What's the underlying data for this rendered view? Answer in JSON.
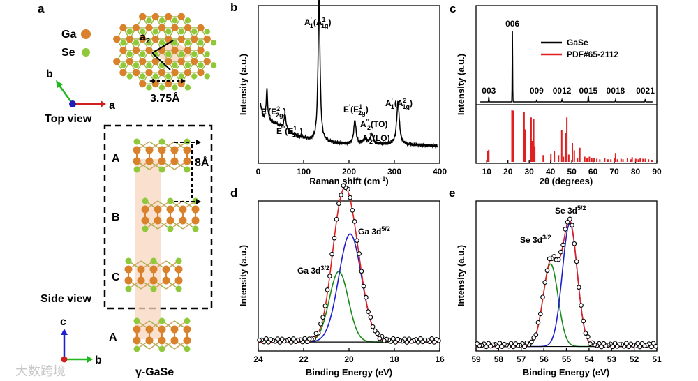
{
  "panels": {
    "a": {
      "letter": "a",
      "legend": [
        {
          "label": "Ga",
          "color": "#d9822b"
        },
        {
          "label": "Se",
          "color": "#8fc93a"
        }
      ],
      "top_view_label": "Top view",
      "side_view_label": "Side view",
      "lattice_a2": "a",
      "lattice_a2_sub": "2",
      "lattice_const": "3.75Å",
      "layer_spacing": "8Å",
      "axes_top": {
        "b": "b",
        "a": "a"
      },
      "axes_side": {
        "c": "c",
        "b": "b"
      },
      "stack_labels": [
        "A",
        "B",
        "C",
        "A"
      ],
      "phase_label": "γ-GaSe",
      "watermark": "大数跨境"
    }
  },
  "chart_data": [
    {
      "panel": "b",
      "type": "line",
      "xlabel": "Raman shift (cm",
      "xlabel_sup": "-1",
      "xlabel_tail": ")",
      "ylabel": "Intensity (a.u.)",
      "xlim": [
        0,
        400
      ],
      "xticks": [
        0,
        100,
        200,
        300,
        400
      ],
      "color": "#000000",
      "peaks": [
        {
          "x": 19,
          "h": 0.2,
          "w": 2
        },
        {
          "x": 59,
          "h": 0.09,
          "w": 2.5
        },
        {
          "x": 134,
          "h": 0.92,
          "w": 2.6
        },
        {
          "x": 213,
          "h": 0.15,
          "w": 3
        },
        {
          "x": 235,
          "h": 0.03,
          "w": 5
        },
        {
          "x": 250,
          "h": 0.06,
          "w": 4
        },
        {
          "x": 308,
          "h": 0.27,
          "w": 3.5
        }
      ],
      "baseline": [
        [
          5,
          0.37
        ],
        [
          12,
          0.28
        ],
        [
          20,
          0.27
        ],
        [
          40,
          0.25
        ],
        [
          80,
          0.18
        ],
        [
          120,
          0.14
        ],
        [
          200,
          0.12
        ],
        [
          300,
          0.12
        ],
        [
          395,
          0.11
        ]
      ],
      "annotations": [
        {
          "text": "A'1(A1g)",
          "main": "A",
          "sup": "'",
          "sub": "1",
          "par_main": "A",
          "par_sup": "1",
          "par_sub": "1g",
          "x": 134
        },
        {
          "text": "E'(E2g)",
          "main": "E",
          "sup": "'",
          "sub": "",
          "par_main": "E",
          "par_sup": "2",
          "par_sub": "2g",
          "x": 19
        },
        {
          "text": "E''(E1g)",
          "main": "E",
          "sup": "''",
          "sub": "",
          "par_main": "E",
          "par_sup": "1",
          "par_sub": "1g",
          "x": 59
        },
        {
          "text": "E'(E2g)",
          "main": "E",
          "sup": "'",
          "sub": "",
          "par_main": "E",
          "par_sup": "1",
          "par_sub": "2g",
          "x": 213
        },
        {
          "text": "A''2(TO)",
          "main": "A",
          "sup": "''",
          "sub": "2",
          "par": "(TO)",
          "x": 240
        },
        {
          "text": "A''2(LO)",
          "main": "A",
          "sup": "''",
          "sub": "2",
          "par": "(LO)",
          "x": 250
        },
        {
          "text": "A'1(A1g)",
          "main": "A",
          "sup": "'",
          "sub": "1",
          "par_main": "A",
          "par_sup": "2",
          "par_sub": "1g",
          "x": 308
        }
      ]
    },
    {
      "panel": "c",
      "type": "bar",
      "xlabel": "2θ (degrees)",
      "ylabel": "Intensity (a.u.)",
      "xlim": [
        5,
        90
      ],
      "xticks": [
        10,
        20,
        30,
        40,
        50,
        60,
        70,
        80,
        90
      ],
      "legend": [
        {
          "name": "GaSe",
          "color": "#000000"
        },
        {
          "name": "PDF#65-2112",
          "color": "#e02020"
        }
      ],
      "series": [
        {
          "name": "GaSe",
          "peaks": [
            {
              "x": 11.0,
              "h": 0.07,
              "label": "003"
            },
            {
              "x": 22.1,
              "h": 1.0,
              "label": "006"
            },
            {
              "x": 33.5,
              "h": 0.02,
              "label": "009"
            },
            {
              "x": 45.4,
              "h": 0.03,
              "label": "0012"
            },
            {
              "x": 57.8,
              "h": 0.09,
              "label": "0015"
            },
            {
              "x": 70.6,
              "h": 0.03,
              "label": "0018"
            },
            {
              "x": 84.6,
              "h": 0.04,
              "label": "0021"
            }
          ]
        },
        {
          "name": "PDF#65-2112",
          "x": [
            10.5,
            11.0,
            21.9,
            22.4,
            27.6,
            28.0,
            30.9,
            31.3,
            32.1,
            32.6,
            36.6,
            40.2,
            41.8,
            43.8,
            45.3,
            46.1,
            47.1,
            47.7,
            48.6,
            50.3,
            51.2,
            52.7,
            53.8,
            56.1,
            57.2,
            58.3,
            59.4,
            60.5,
            61.8,
            63.2,
            65.5,
            67.0,
            68.4,
            70.1,
            70.6,
            71.5,
            73.2,
            74.1,
            76.2,
            77.8,
            78.4,
            80.1,
            81.3,
            82.2,
            83.5,
            84.6,
            86.1,
            87.7
          ],
          "values": [
            0.2,
            0.23,
            1.0,
            0.98,
            0.95,
            0.62,
            0.85,
            0.4,
            0.82,
            0.3,
            0.13,
            0.15,
            0.2,
            0.13,
            0.6,
            0.1,
            0.55,
            0.85,
            0.14,
            0.36,
            0.22,
            0.08,
            0.27,
            0.1,
            0.08,
            0.1,
            0.07,
            0.08,
            0.06,
            0.05,
            0.08,
            0.05,
            0.05,
            0.07,
            0.17,
            0.05,
            0.06,
            0.05,
            0.07,
            0.05,
            0.09,
            0.06,
            0.05,
            0.08,
            0.06,
            0.06,
            0.05,
            0.04
          ]
        }
      ]
    },
    {
      "panel": "d",
      "type": "scatter",
      "xlabel": "Binding Energy (eV)",
      "ylabel": "Intensity (a.u.)",
      "xlim": [
        24,
        16
      ],
      "xticks": [
        24,
        22,
        20,
        18,
        16
      ],
      "fits": [
        {
          "name": "Ga 3d",
          "sup": "3/2",
          "center": 20.45,
          "height": 0.47,
          "sigma": 0.42,
          "color": "#1a8a1a"
        },
        {
          "name": "Ga 3d",
          "sup": "5/2",
          "center": 19.95,
          "height": 0.72,
          "sigma": 0.5,
          "color": "#1f1fd0"
        }
      ],
      "envelope_color": "#e02020",
      "marker_color": "#000000",
      "background": 0.06
    },
    {
      "panel": "e",
      "type": "scatter",
      "xlabel": "Binding Energy (eV)",
      "ylabel": "Intensity (a.u.)",
      "xlim": [
        59,
        51
      ],
      "xticks": [
        59,
        58,
        57,
        56,
        55,
        54,
        53,
        52,
        51
      ],
      "fits": [
        {
          "name": "Se 3d",
          "sup": "3/2",
          "center": 55.7,
          "height": 0.55,
          "sigma": 0.33,
          "color": "#1a8a1a"
        },
        {
          "name": "Se 3d",
          "sup": "5/2",
          "center": 54.85,
          "height": 0.82,
          "sigma": 0.33,
          "color": "#1f1fd0"
        }
      ],
      "envelope_color": "#e02020",
      "marker_color": "#000000",
      "background": 0.03
    }
  ]
}
